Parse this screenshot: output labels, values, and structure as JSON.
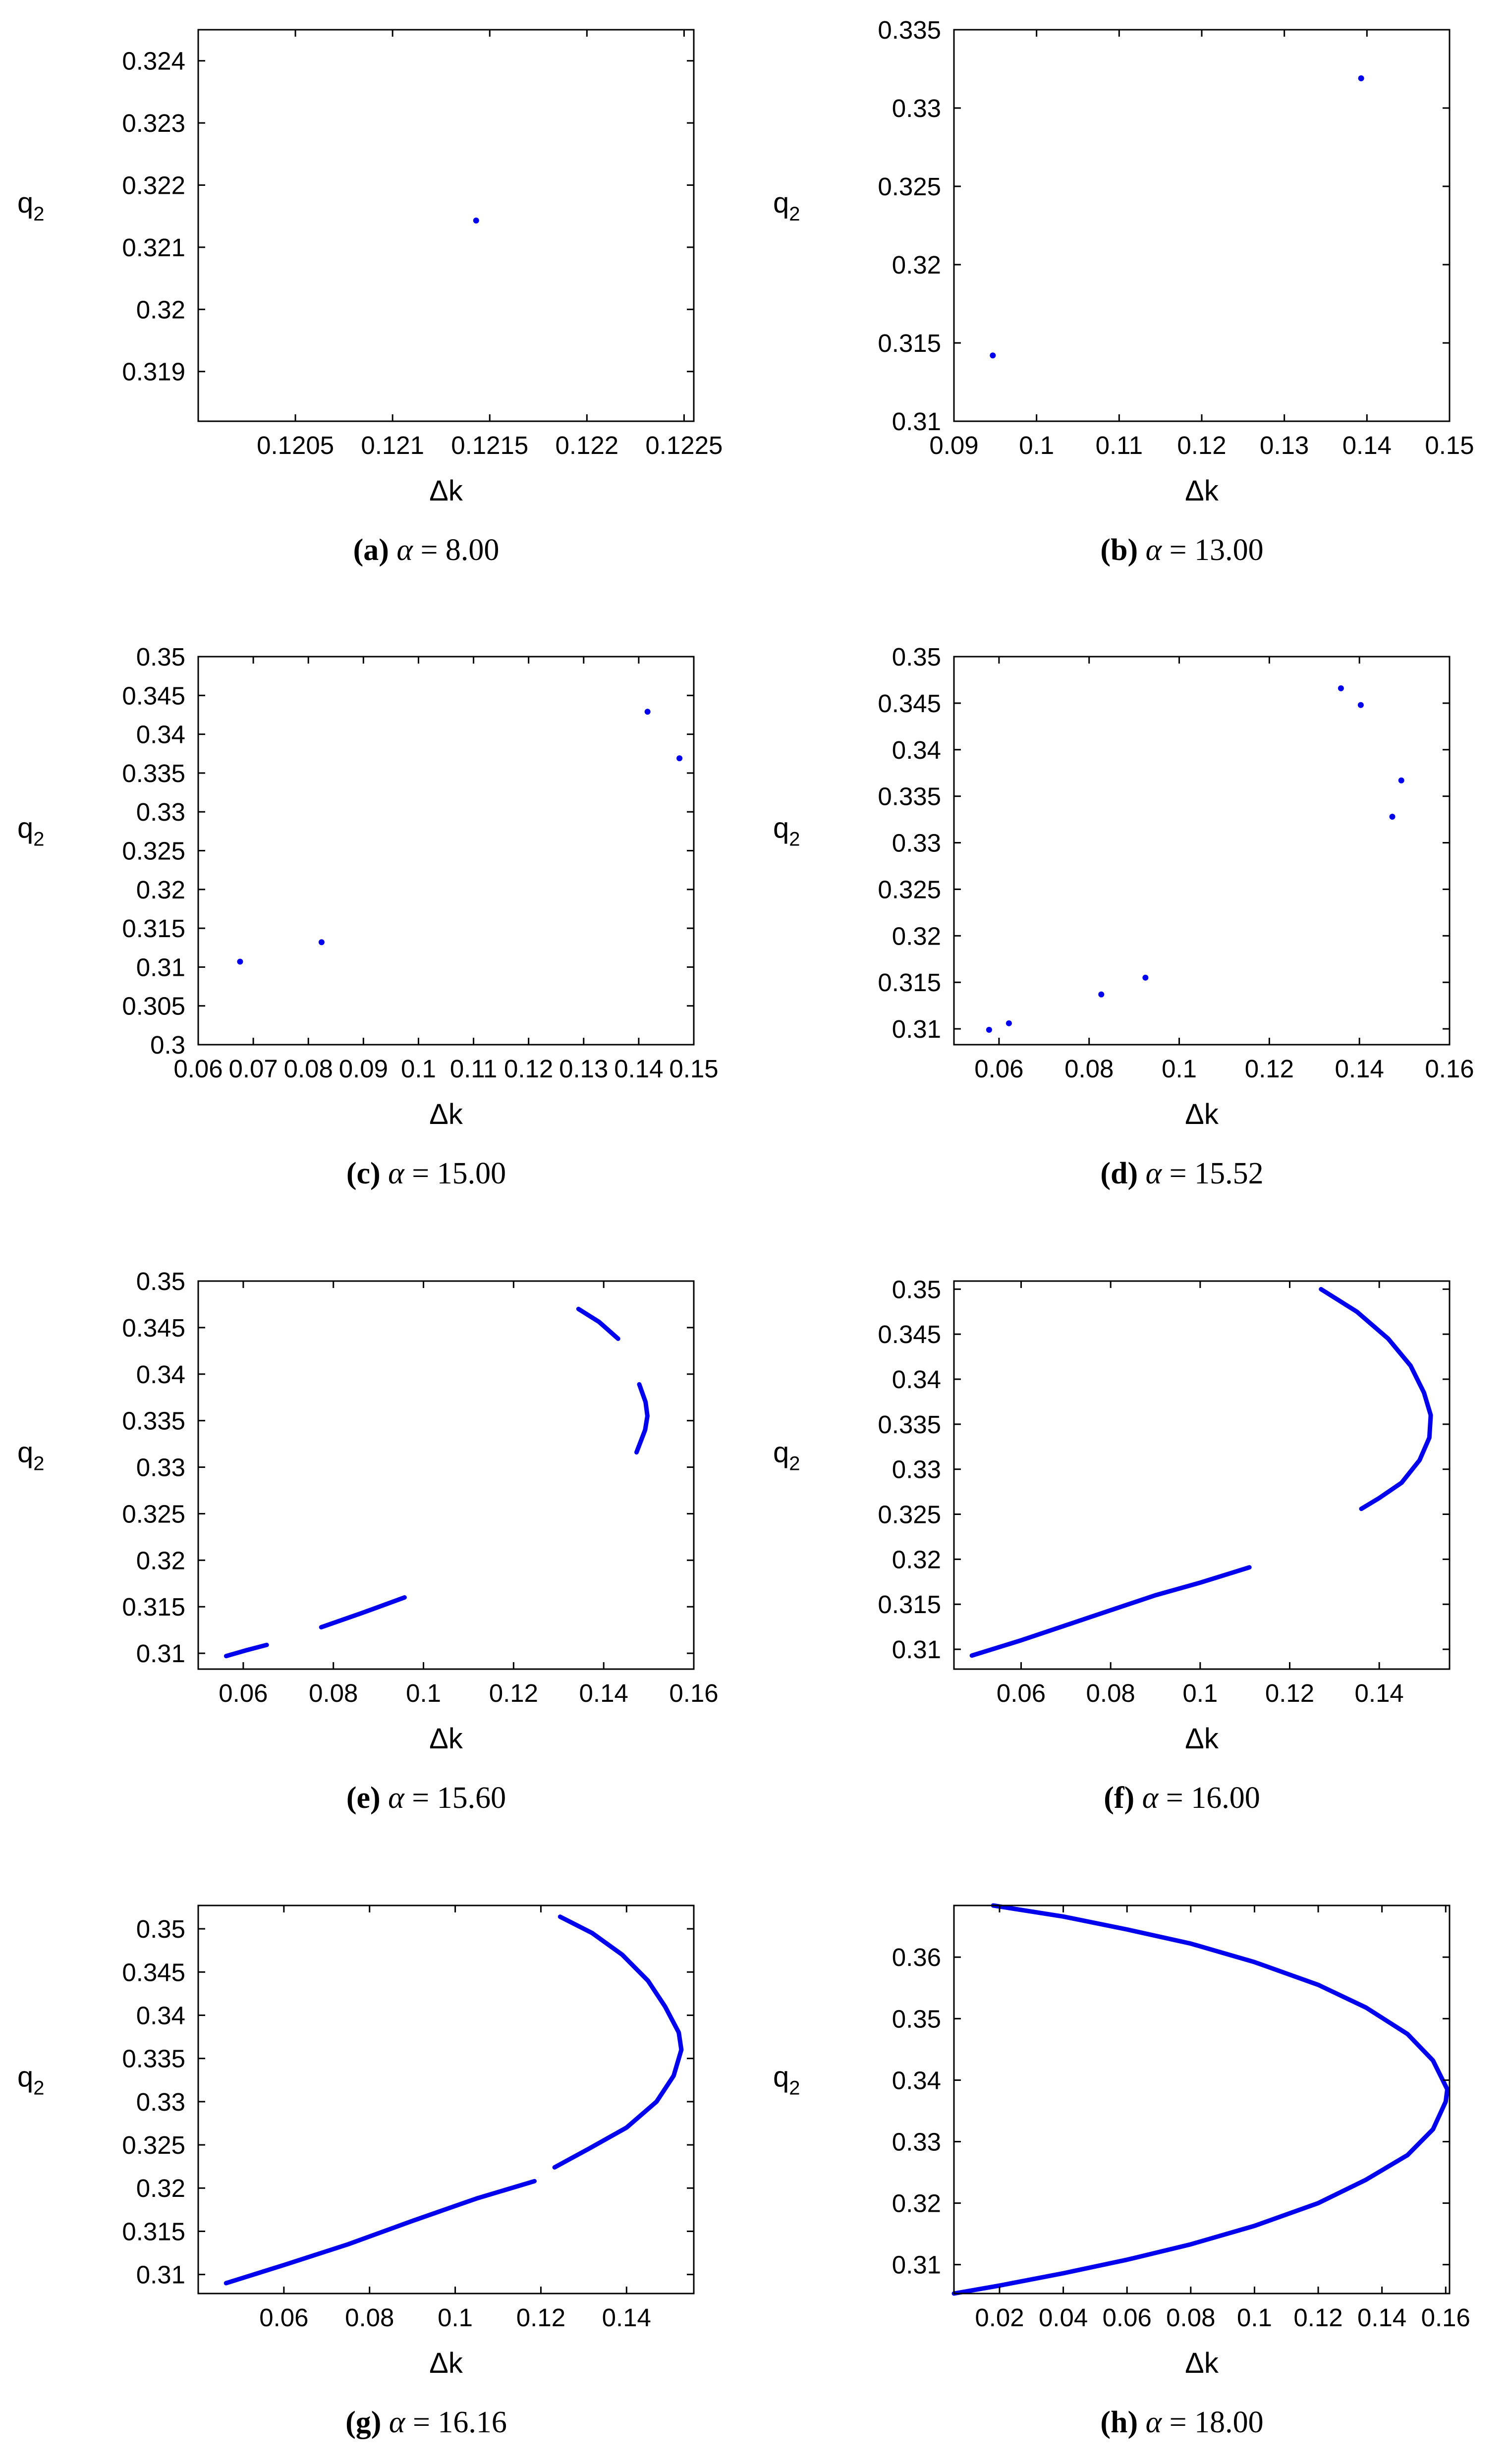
{
  "figure": {
    "x_axis_label": "Δk",
    "y_axis_label_base": "q",
    "y_axis_label_sub": "2",
    "caption_alpha_symbol": "α",
    "caption_equals": "="
  },
  "chart_data": [
    {
      "id": "a",
      "type": "scatter",
      "caption_letter": "(a)",
      "alpha": "8.00",
      "xlabel": "Δk",
      "ylabel": "q2",
      "xlim": [
        0.12,
        0.12255
      ],
      "ylim": [
        0.3182,
        0.3245
      ],
      "xticks": [
        0.1205,
        0.121,
        0.1215,
        0.122,
        0.1225
      ],
      "xtick_labels": [
        "0.1205",
        "0.121",
        "0.1215",
        "0.122",
        "0.1225"
      ],
      "yticks": [
        0.319,
        0.32,
        0.321,
        0.322,
        0.323,
        0.324
      ],
      "ytick_labels": [
        "0.319",
        "0.32",
        "0.321",
        "0.322",
        "0.323",
        "0.324"
      ],
      "series": [
        {
          "style": "points",
          "x": [
            0.12143
          ],
          "y": [
            0.32143
          ]
        }
      ]
    },
    {
      "id": "b",
      "type": "scatter",
      "caption_letter": "(b)",
      "alpha": "13.00",
      "xlabel": "Δk",
      "ylabel": "q2",
      "xlim": [
        0.09,
        0.15
      ],
      "ylim": [
        0.31,
        0.335
      ],
      "xticks": [
        0.09,
        0.1,
        0.11,
        0.12,
        0.13,
        0.14,
        0.15
      ],
      "xtick_labels": [
        "0.09",
        "0.1",
        "0.11",
        "0.12",
        "0.13",
        "0.14",
        "0.15"
      ],
      "yticks": [
        0.31,
        0.315,
        0.32,
        0.325,
        0.33,
        0.335
      ],
      "ytick_labels": [
        "0.31",
        "0.315",
        "0.32",
        "0.325",
        "0.33",
        "0.335"
      ],
      "series": [
        {
          "style": "points",
          "x": [
            0.0947,
            0.1393
          ],
          "y": [
            0.3142,
            0.3319
          ]
        }
      ]
    },
    {
      "id": "c",
      "type": "scatter",
      "caption_letter": "(c)",
      "alpha": "15.00",
      "xlabel": "Δk",
      "ylabel": "q2",
      "xlim": [
        0.06,
        0.15
      ],
      "ylim": [
        0.3,
        0.35
      ],
      "xticks": [
        0.06,
        0.07,
        0.08,
        0.09,
        0.1,
        0.11,
        0.12,
        0.13,
        0.14,
        0.15
      ],
      "xtick_labels": [
        "0.06",
        "0.07",
        "0.08",
        "0.09",
        "0.1",
        "0.11",
        "0.12",
        "0.13",
        "0.14",
        "0.15"
      ],
      "yticks": [
        0.3,
        0.305,
        0.31,
        0.315,
        0.32,
        0.325,
        0.33,
        0.335,
        0.34,
        0.345,
        0.35
      ],
      "ytick_labels": [
        "0.3",
        "0.305",
        "0.31",
        "0.315",
        "0.32",
        "0.325",
        "0.33",
        "0.335",
        "0.34",
        "0.345",
        "0.35"
      ],
      "series": [
        {
          "style": "points",
          "x": [
            0.0676,
            0.0824,
            0.1416,
            0.1474
          ],
          "y": [
            0.3107,
            0.3132,
            0.3429,
            0.3369
          ]
        }
      ]
    },
    {
      "id": "d",
      "type": "scatter",
      "caption_letter": "(d)",
      "alpha": "15.52",
      "xlabel": "Δk",
      "ylabel": "q2",
      "xlim": [
        0.05,
        0.16
      ],
      "ylim": [
        0.3083,
        0.35
      ],
      "xticks": [
        0.06,
        0.08,
        0.1,
        0.12,
        0.14,
        0.16
      ],
      "xtick_labels": [
        "0.06",
        "0.08",
        "0.1",
        "0.12",
        "0.14",
        "0.16"
      ],
      "yticks": [
        0.31,
        0.315,
        0.32,
        0.325,
        0.33,
        0.335,
        0.34,
        0.345,
        0.35
      ],
      "ytick_labels": [
        "0.31",
        "0.315",
        "0.32",
        "0.325",
        "0.33",
        "0.335",
        "0.34",
        "0.345",
        "0.35"
      ],
      "series": [
        {
          "style": "points",
          "x": [
            0.0578,
            0.0622,
            0.0827,
            0.0925,
            0.1359,
            0.1403,
            0.1473,
            0.1493
          ],
          "y": [
            0.3099,
            0.3106,
            0.3137,
            0.3155,
            0.3466,
            0.3448,
            0.3328,
            0.3367
          ]
        }
      ]
    },
    {
      "id": "e",
      "type": "line",
      "caption_letter": "(e)",
      "alpha": "15.60",
      "xlabel": "Δk",
      "ylabel": "q2",
      "xlim": [
        0.05,
        0.16
      ],
      "ylim": [
        0.3083,
        0.35
      ],
      "xticks": [
        0.06,
        0.08,
        0.1,
        0.12,
        0.14,
        0.16
      ],
      "xtick_labels": [
        "0.06",
        "0.08",
        "0.1",
        "0.12",
        "0.14",
        "0.16"
      ],
      "yticks": [
        0.31,
        0.315,
        0.32,
        0.325,
        0.33,
        0.335,
        0.34,
        0.345,
        0.35
      ],
      "ytick_labels": [
        "0.31",
        "0.315",
        "0.32",
        "0.325",
        "0.33",
        "0.335",
        "0.34",
        "0.345",
        "0.35"
      ],
      "series": [
        {
          "style": "line",
          "x": [
            0.0562,
            0.0605,
            0.0652
          ],
          "y": [
            0.3097,
            0.3103,
            0.3109
          ]
        },
        {
          "style": "line",
          "x": [
            0.0773,
            0.0862,
            0.0958
          ],
          "y": [
            0.3128,
            0.3143,
            0.316
          ]
        },
        {
          "style": "line",
          "x": [
            0.1344,
            0.139,
            0.1432
          ],
          "y": [
            0.347,
            0.3456,
            0.3438
          ]
        },
        {
          "style": "line",
          "x": [
            0.1479,
            0.1493,
            0.1497,
            0.1492,
            0.1473
          ],
          "y": [
            0.3389,
            0.337,
            0.3355,
            0.334,
            0.3316
          ]
        }
      ]
    },
    {
      "id": "f",
      "type": "line",
      "caption_letter": "(f)",
      "alpha": "16.00",
      "xlabel": "Δk",
      "ylabel": "q2",
      "xlim": [
        0.045,
        0.1557
      ],
      "ylim": [
        0.3078,
        0.3509
      ],
      "xticks": [
        0.06,
        0.08,
        0.1,
        0.12,
        0.14
      ],
      "xtick_labels": [
        "0.06",
        "0.08",
        "0.1",
        "0.12",
        "0.14"
      ],
      "yticks": [
        0.31,
        0.315,
        0.32,
        0.325,
        0.33,
        0.335,
        0.34,
        0.345,
        0.35
      ],
      "ytick_labels": [
        "0.31",
        "0.315",
        "0.32",
        "0.325",
        "0.33",
        "0.335",
        "0.34",
        "0.345",
        "0.35"
      ],
      "series": [
        {
          "style": "line",
          "x": [
            0.049,
            0.06,
            0.075,
            0.09,
            0.1,
            0.111
          ],
          "y": [
            0.3093,
            0.311,
            0.3135,
            0.316,
            0.3174,
            0.3191
          ]
        },
        {
          "style": "line",
          "x": [
            0.127,
            0.135,
            0.142,
            0.147,
            0.15,
            0.1515,
            0.1512,
            0.149,
            0.145,
            0.14,
            0.136
          ],
          "y": [
            0.35,
            0.3475,
            0.3445,
            0.3415,
            0.3385,
            0.336,
            0.3335,
            0.331,
            0.3285,
            0.3268,
            0.3256
          ]
        }
      ]
    },
    {
      "id": "g",
      "type": "line",
      "caption_letter": "(g)",
      "alpha": "16.16",
      "xlabel": "Δk",
      "ylabel": "q2",
      "xlim": [
        0.04,
        0.1557
      ],
      "ylim": [
        0.3078,
        0.3527
      ],
      "xticks": [
        0.06,
        0.08,
        0.1,
        0.12,
        0.14
      ],
      "xtick_labels": [
        "0.06",
        "0.08",
        "0.1",
        "0.12",
        "0.14"
      ],
      "yticks": [
        0.31,
        0.315,
        0.32,
        0.325,
        0.33,
        0.335,
        0.34,
        0.345,
        0.35
      ],
      "ytick_labels": [
        "0.31",
        "0.315",
        "0.32",
        "0.325",
        "0.33",
        "0.335",
        "0.34",
        "0.345",
        "0.35"
      ],
      "series": [
        {
          "style": "line",
          "x": [
            0.0465,
            0.06,
            0.075,
            0.09,
            0.105,
            0.1185
          ],
          "y": [
            0.309,
            0.3111,
            0.3135,
            0.3162,
            0.3188,
            0.3208
          ]
        },
        {
          "style": "line",
          "x": [
            0.1245,
            0.132,
            0.139,
            0.145,
            0.149,
            0.1522,
            0.1528,
            0.151,
            0.147,
            0.14,
            0.131,
            0.1232
          ],
          "y": [
            0.3514,
            0.3495,
            0.347,
            0.344,
            0.341,
            0.338,
            0.336,
            0.333,
            0.33,
            0.327,
            0.3245,
            0.3224
          ]
        }
      ]
    },
    {
      "id": "h",
      "type": "line",
      "caption_letter": "(h)",
      "alpha": "18.00",
      "xlabel": "Δk",
      "ylabel": "q2",
      "xlim": [
        0.0057,
        0.1612
      ],
      "ylim": [
        0.3053,
        0.3684
      ],
      "xticks": [
        0.02,
        0.04,
        0.06,
        0.08,
        0.1,
        0.12,
        0.14,
        0.16
      ],
      "xtick_labels": [
        "0.02",
        "0.04",
        "0.06",
        "0.08",
        "0.1",
        "0.12",
        "0.14",
        "0.16"
      ],
      "yticks": [
        0.31,
        0.32,
        0.33,
        0.34,
        0.35,
        0.36
      ],
      "ytick_labels": [
        "0.31",
        "0.32",
        "0.33",
        "0.34",
        "0.35",
        "0.36"
      ],
      "series": [
        {
          "style": "line",
          "x": [
            0.018,
            0.04,
            0.06,
            0.08,
            0.1,
            0.12,
            0.135,
            0.148,
            0.156,
            0.1605,
            0.16,
            0.156,
            0.148,
            0.135,
            0.12,
            0.1,
            0.08,
            0.06,
            0.04,
            0.02,
            0.0057
          ],
          "y": [
            0.3684,
            0.3666,
            0.3645,
            0.3622,
            0.3592,
            0.3555,
            0.3518,
            0.3475,
            0.3432,
            0.3385,
            0.3365,
            0.332,
            0.3278,
            0.3238,
            0.32,
            0.3163,
            0.3133,
            0.3108,
            0.3086,
            0.3066,
            0.3053
          ]
        }
      ]
    }
  ]
}
